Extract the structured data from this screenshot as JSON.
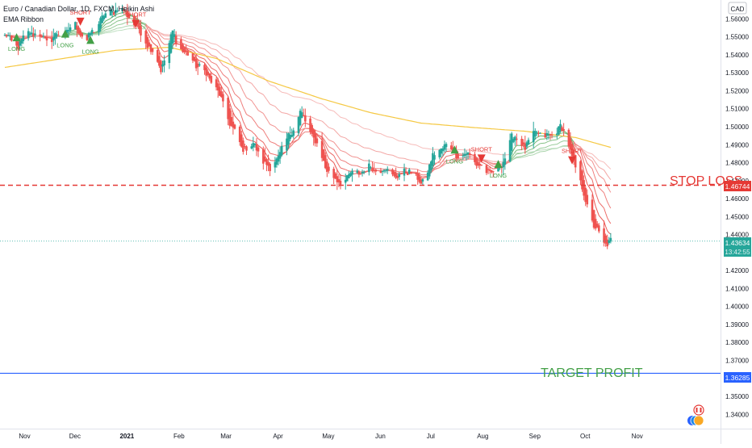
{
  "header": {
    "symbol_title": "Euro / Canadian Dollar, 1D, FXCM, Heikin Ashi",
    "indicator_name": "EMA Ribbon"
  },
  "price_axis": {
    "currency": "CAD",
    "ticks": [
      "1.56000",
      "1.55000",
      "1.54000",
      "1.53000",
      "1.52000",
      "1.51000",
      "1.50000",
      "1.49000",
      "1.48000",
      "1.47000",
      "1.46000",
      "1.45000",
      "1.44000",
      "1.43000",
      "1.42000",
      "1.41000",
      "1.40000",
      "1.39000",
      "1.38000",
      "1.37000",
      "1.36000",
      "1.35000",
      "1.34000"
    ],
    "badges": {
      "stop_loss": "1.46744",
      "last_price": "1.43634",
      "countdown": "13:42:55",
      "target": "1.36285"
    }
  },
  "time_axis": {
    "ticks": [
      "Nov",
      "Dec",
      "2021",
      "Feb",
      "Mar",
      "Apr",
      "May",
      "Jun",
      "Jul",
      "Aug",
      "Sep",
      "Oct",
      "Nov"
    ]
  },
  "annotations": {
    "stop_loss_label": "STOP LOSS",
    "target_label": "TARGET PROFIT",
    "signals": [
      {
        "type": "long",
        "label": "LONG",
        "date": "2020-11-02",
        "price": 1.5498
      },
      {
        "type": "long",
        "label": "LONG",
        "date": "2020-12-01",
        "price": 1.5518
      },
      {
        "type": "short",
        "label": "SHORT",
        "date": "2020-12-10",
        "price": 1.5584
      },
      {
        "type": "long",
        "label": "LONG",
        "date": "2020-12-16",
        "price": 1.5483
      },
      {
        "type": "short",
        "label": "SHORT",
        "date": "2021-01-12",
        "price": 1.5572
      },
      {
        "type": "long",
        "label": "LONG",
        "date": "2021-07-21",
        "price": 1.4873
      },
      {
        "type": "short",
        "label": "SHORT",
        "date": "2021-08-06",
        "price": 1.4823
      },
      {
        "type": "long",
        "label": "LONG",
        "date": "2021-08-16",
        "price": 1.4793
      },
      {
        "type": "short",
        "label": "SHORT",
        "date": "2021-09-29",
        "price": 1.4813
      }
    ]
  },
  "colors": {
    "up": "#26a69a",
    "down": "#ef5350",
    "ema_slow": "#f5c842",
    "stop_loss": "#e53935",
    "target": "#2962ff",
    "long_marker": "#43a047",
    "short_marker": "#e53935",
    "last_price_badge": "#26a69a"
  },
  "chart_data": {
    "type": "candlestick",
    "symbol": "EURCAD",
    "timeframe": "1D",
    "exchange": "FXCM",
    "style": "Heikin Ashi",
    "start_date": "2020-10-26",
    "end_date": "2021-10-22",
    "y_range": [
      1.337,
      1.566
    ],
    "grid": false,
    "horizontal_levels": [
      {
        "label": "STOP LOSS",
        "value": 1.46744,
        "style": "dashed"
      },
      {
        "label": "TARGET PROFIT",
        "value": 1.36285,
        "style": "solid"
      }
    ],
    "last_price": 1.43634,
    "ema_slow_points": [
      {
        "date": "2020-10-26",
        "value": 1.533
      },
      {
        "date": "2020-11-30",
        "value": 1.538
      },
      {
        "date": "2020-12-31",
        "value": 1.5425
      },
      {
        "date": "2021-02-01",
        "value": 1.5442
      },
      {
        "date": "2021-03-01",
        "value": 1.538
      },
      {
        "date": "2021-04-01",
        "value": 1.5255
      },
      {
        "date": "2021-05-03",
        "value": 1.5155
      },
      {
        "date": "2021-06-01",
        "value": 1.5078
      },
      {
        "date": "2021-07-01",
        "value": 1.502
      },
      {
        "date": "2021-08-02",
        "value": 1.4995
      },
      {
        "date": "2021-09-01",
        "value": 1.4975
      },
      {
        "date": "2021-10-01",
        "value": 1.494
      },
      {
        "date": "2021-10-22",
        "value": 1.4885
      }
    ],
    "price_path": [
      {
        "date": "2020-10-26",
        "value": 1.5505
      },
      {
        "date": "2020-11-03",
        "value": 1.545
      },
      {
        "date": "2020-11-10",
        "value": 1.553
      },
      {
        "date": "2020-11-20",
        "value": 1.548
      },
      {
        "date": "2020-12-01",
        "value": 1.553
      },
      {
        "date": "2020-12-07",
        "value": 1.556
      },
      {
        "date": "2020-12-14",
        "value": 1.548
      },
      {
        "date": "2020-12-22",
        "value": 1.56
      },
      {
        "date": "2021-01-01",
        "value": 1.566
      },
      {
        "date": "2021-01-08",
        "value": 1.562
      },
      {
        "date": "2021-01-20",
        "value": 1.545
      },
      {
        "date": "2021-01-27",
        "value": 1.532
      },
      {
        "date": "2021-02-03",
        "value": 1.552
      },
      {
        "date": "2021-02-10",
        "value": 1.541
      },
      {
        "date": "2021-02-19",
        "value": 1.533
      },
      {
        "date": "2021-02-28",
        "value": 1.524
      },
      {
        "date": "2021-03-08",
        "value": 1.505
      },
      {
        "date": "2021-03-16",
        "value": 1.488
      },
      {
        "date": "2021-03-23",
        "value": 1.49
      },
      {
        "date": "2021-04-02",
        "value": 1.476
      },
      {
        "date": "2021-04-12",
        "value": 1.492
      },
      {
        "date": "2021-04-20",
        "value": 1.508
      },
      {
        "date": "2021-04-28",
        "value": 1.494
      },
      {
        "date": "2021-05-05",
        "value": 1.478
      },
      {
        "date": "2021-05-12",
        "value": 1.469
      },
      {
        "date": "2021-05-20",
        "value": 1.473
      },
      {
        "date": "2021-05-31",
        "value": 1.477
      },
      {
        "date": "2021-06-10",
        "value": 1.476
      },
      {
        "date": "2021-06-17",
        "value": 1.472
      },
      {
        "date": "2021-06-24",
        "value": 1.476
      },
      {
        "date": "2021-07-01",
        "value": 1.468
      },
      {
        "date": "2021-07-08",
        "value": 1.483
      },
      {
        "date": "2021-07-15",
        "value": 1.49
      },
      {
        "date": "2021-07-22",
        "value": 1.485
      },
      {
        "date": "2021-07-30",
        "value": 1.484
      },
      {
        "date": "2021-08-09",
        "value": 1.474
      },
      {
        "date": "2021-08-18",
        "value": 1.478
      },
      {
        "date": "2021-08-24",
        "value": 1.495
      },
      {
        "date": "2021-09-01",
        "value": 1.489
      },
      {
        "date": "2021-09-08",
        "value": 1.497
      },
      {
        "date": "2021-09-16",
        "value": 1.494
      },
      {
        "date": "2021-09-22",
        "value": 1.501
      },
      {
        "date": "2021-09-29",
        "value": 1.484
      },
      {
        "date": "2021-10-05",
        "value": 1.465
      },
      {
        "date": "2021-10-12",
        "value": 1.445
      },
      {
        "date": "2021-10-18",
        "value": 1.435
      },
      {
        "date": "2021-10-22",
        "value": 1.4363
      }
    ]
  }
}
